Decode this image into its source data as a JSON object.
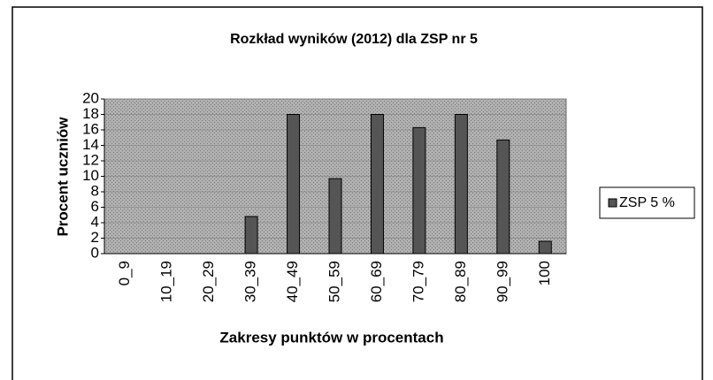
{
  "chart_data": {
    "type": "bar",
    "title": "Rozkład wyników (2012) dla ZSP nr 5",
    "x_label": "Zakresy punktów w procentach",
    "y_label": "Procent uczniów",
    "categories": [
      "0_9",
      "10_19",
      "20_29",
      "30_39",
      "40_49",
      "50_59",
      "60_69",
      "70_79",
      "80_89",
      "90_99",
      "100"
    ],
    "series": [
      {
        "name": "ZSP 5 %",
        "color": "#555555",
        "values": [
          0,
          0,
          0,
          4.8,
          18,
          9.7,
          18,
          16.3,
          18,
          14.7,
          1.6
        ]
      }
    ],
    "ylim": [
      0,
      20
    ],
    "yticks": [
      0,
      2,
      4,
      6,
      8,
      10,
      12,
      14,
      16,
      18,
      20
    ],
    "grid": true,
    "legend": "right"
  }
}
